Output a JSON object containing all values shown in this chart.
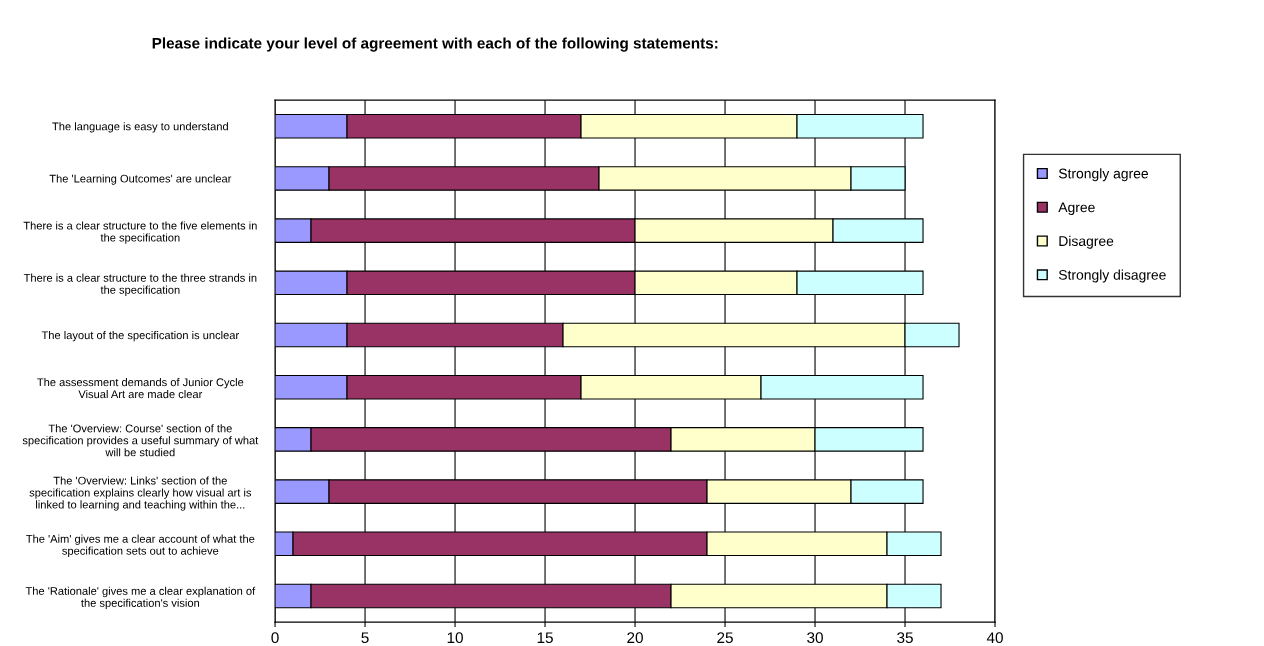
{
  "chart_data": {
    "type": "bar",
    "orientation": "horizontal",
    "stacked": true,
    "title": "Please indicate your level of agreement with each of the following statements:",
    "categories": [
      "The language is easy to understand",
      "The 'Learning Outcomes' are unclear",
      "There is a clear structure to the five elements in\nthe specification",
      "There is a clear structure to the three strands in\nthe specification",
      "The layout of the specification is unclear",
      "The assessment demands of Junior Cycle\nVisual Art are made clear",
      "The 'Overview: Course' section of the\nspecification provides a useful summary of what\nwill be studied",
      "The 'Overview: Links' section of the\nspecification explains clearly how visual art is\nlinked to learning and teaching within the...",
      "The 'Aim' gives me a clear account of what the\nspecification sets out to achieve",
      "The 'Rationale' gives me a clear explanation of\nthe specification's vision"
    ],
    "series": [
      {
        "name": "Strongly agree",
        "color": "#9999ff",
        "values": [
          4,
          3,
          2,
          4,
          4,
          4,
          2,
          3,
          1,
          2
        ]
      },
      {
        "name": "Agree",
        "color": "#993366",
        "values": [
          13,
          15,
          18,
          16,
          12,
          13,
          20,
          21,
          23,
          20
        ]
      },
      {
        "name": "Disagree",
        "color": "#ffffcc",
        "values": [
          12,
          14,
          11,
          9,
          19,
          10,
          8,
          8,
          10,
          12
        ]
      },
      {
        "name": "Strongly disagree",
        "color": "#ccffff",
        "values": [
          7,
          3,
          5,
          7,
          3,
          9,
          6,
          4,
          3,
          3
        ]
      }
    ],
    "xlim": [
      0,
      40
    ],
    "xticks": [
      0,
      5,
      10,
      15,
      20,
      25,
      30,
      35,
      40
    ],
    "grid": "x",
    "legend": "right"
  }
}
